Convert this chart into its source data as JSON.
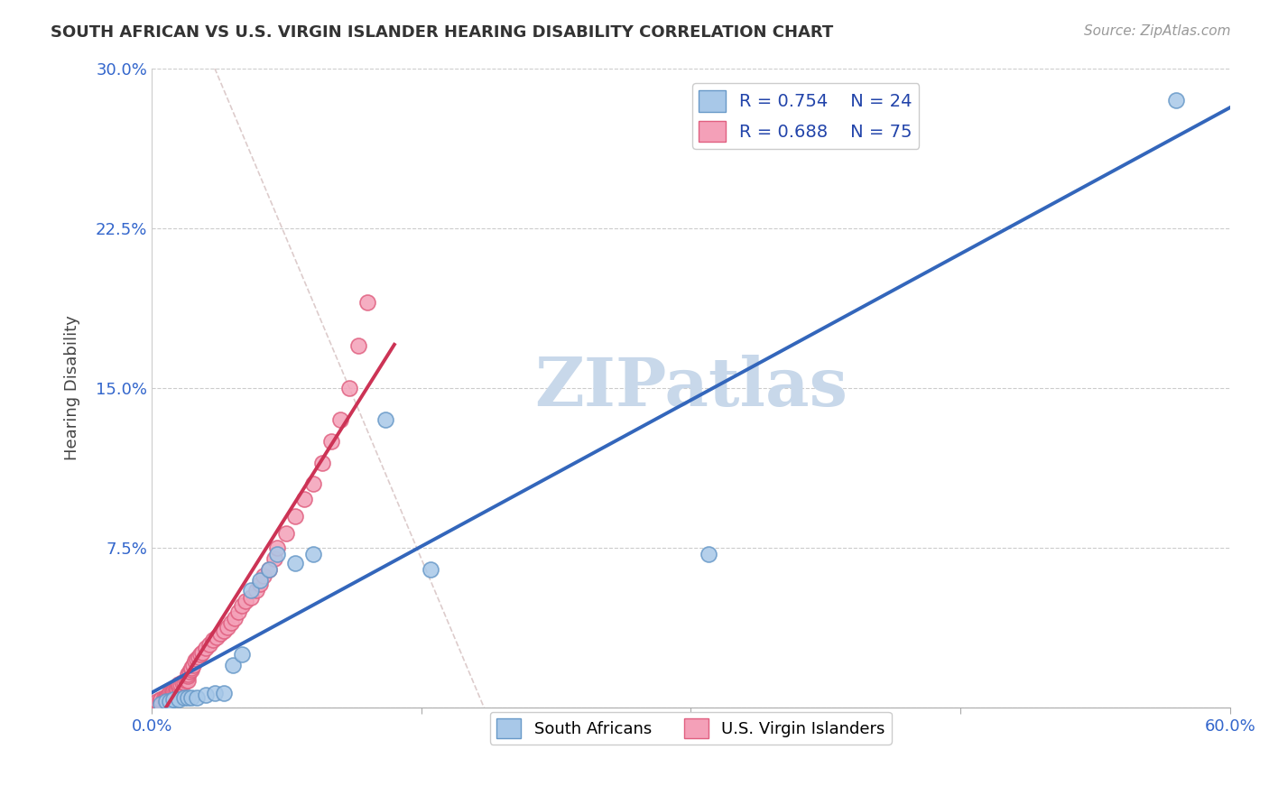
{
  "title": "SOUTH AFRICAN VS U.S. VIRGIN ISLANDER HEARING DISABILITY CORRELATION CHART",
  "source": "Source: ZipAtlas.com",
  "xlabel": "",
  "ylabel": "Hearing Disability",
  "xlim": [
    0.0,
    0.6
  ],
  "ylim": [
    0.0,
    0.3
  ],
  "xticks": [
    0.0,
    0.15,
    0.3,
    0.45,
    0.6
  ],
  "xtick_labels": [
    "0.0%",
    "",
    "",
    "",
    "60.0%"
  ],
  "yticks": [
    0.0,
    0.075,
    0.15,
    0.225,
    0.3
  ],
  "ytick_labels": [
    "",
    "7.5%",
    "15.0%",
    "22.5%",
    "30.0%"
  ],
  "blue_R": 0.754,
  "blue_N": 24,
  "pink_R": 0.688,
  "pink_N": 75,
  "blue_color": "#A8C8E8",
  "blue_edge": "#6899C8",
  "pink_color": "#F4A0B8",
  "pink_edge": "#E06080",
  "blue_line_color": "#3366BB",
  "pink_line_color": "#CC3355",
  "diag_color": "#DDCCCC",
  "watermark_color": "#C8D8EA",
  "background_color": "#FFFFFF",
  "grid_color": "#CCCCCC",
  "blue_x": [
    0.005,
    0.008,
    0.01,
    0.012,
    0.015,
    0.018,
    0.02,
    0.022,
    0.025,
    0.03,
    0.035,
    0.04,
    0.045,
    0.05,
    0.055,
    0.06,
    0.065,
    0.07,
    0.08,
    0.09,
    0.13,
    0.155,
    0.31,
    0.57
  ],
  "blue_y": [
    0.002,
    0.003,
    0.003,
    0.004,
    0.004,
    0.005,
    0.005,
    0.005,
    0.005,
    0.006,
    0.007,
    0.007,
    0.02,
    0.025,
    0.055,
    0.06,
    0.065,
    0.072,
    0.068,
    0.072,
    0.135,
    0.065,
    0.072,
    0.285
  ],
  "pink_x": [
    0.003,
    0.003,
    0.005,
    0.005,
    0.005,
    0.005,
    0.007,
    0.007,
    0.008,
    0.008,
    0.008,
    0.008,
    0.009,
    0.009,
    0.01,
    0.01,
    0.01,
    0.01,
    0.011,
    0.011,
    0.012,
    0.012,
    0.012,
    0.013,
    0.014,
    0.014,
    0.014,
    0.015,
    0.015,
    0.015,
    0.016,
    0.017,
    0.018,
    0.019,
    0.02,
    0.02,
    0.02,
    0.021,
    0.022,
    0.022,
    0.023,
    0.024,
    0.025,
    0.026,
    0.027,
    0.028,
    0.03,
    0.032,
    0.034,
    0.036,
    0.038,
    0.04,
    0.042,
    0.044,
    0.046,
    0.048,
    0.05,
    0.052,
    0.055,
    0.058,
    0.06,
    0.062,
    0.065,
    0.068,
    0.07,
    0.075,
    0.08,
    0.085,
    0.09,
    0.095,
    0.1,
    0.105,
    0.11,
    0.115,
    0.12
  ],
  "pink_y": [
    0.002,
    0.003,
    0.003,
    0.003,
    0.004,
    0.004,
    0.004,
    0.005,
    0.005,
    0.005,
    0.005,
    0.005,
    0.005,
    0.006,
    0.005,
    0.006,
    0.006,
    0.007,
    0.006,
    0.007,
    0.007,
    0.007,
    0.008,
    0.008,
    0.008,
    0.009,
    0.009,
    0.01,
    0.01,
    0.011,
    0.011,
    0.012,
    0.012,
    0.013,
    0.013,
    0.015,
    0.016,
    0.017,
    0.018,
    0.019,
    0.02,
    0.022,
    0.023,
    0.024,
    0.025,
    0.026,
    0.028,
    0.03,
    0.032,
    0.033,
    0.035,
    0.036,
    0.038,
    0.04,
    0.042,
    0.045,
    0.048,
    0.05,
    0.052,
    0.055,
    0.058,
    0.062,
    0.065,
    0.07,
    0.075,
    0.082,
    0.09,
    0.098,
    0.105,
    0.115,
    0.125,
    0.135,
    0.15,
    0.17,
    0.19
  ],
  "pink_line_x0": 0.0,
  "pink_line_x1": 0.135,
  "blue_line_x0": 0.0,
  "blue_line_x1": 0.6
}
